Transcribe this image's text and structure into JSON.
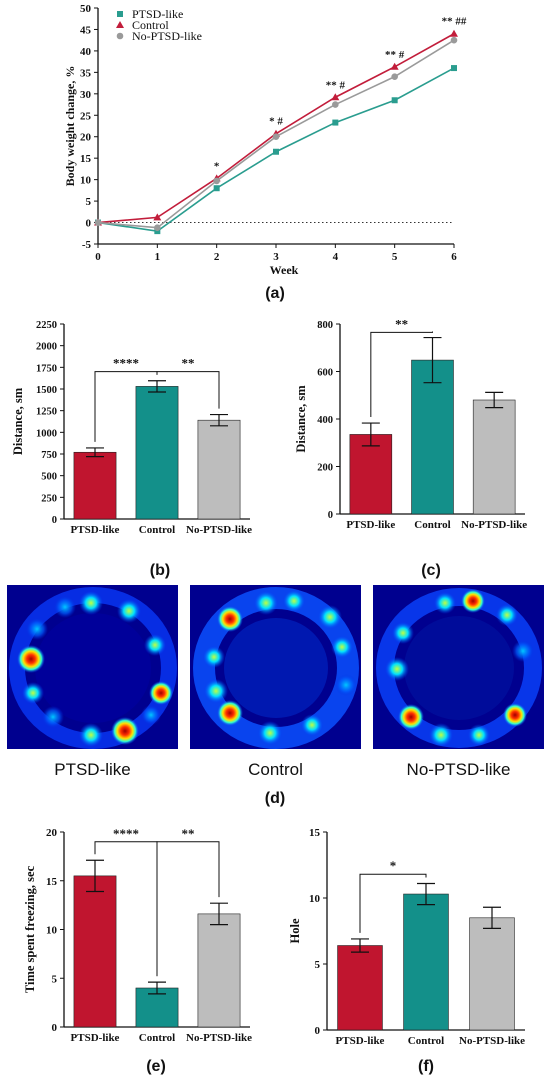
{
  "colors": {
    "ptsd": "#c0152f",
    "control": "#13908a",
    "noptsd": "#bdbdbd",
    "ptsd_line": "#2a9d8f",
    "control_line": "#c21d3b",
    "noptsd_line": "#9a9a9a"
  },
  "chart_data": [
    {
      "panel": "a",
      "type": "line",
      "xlabel": "Week",
      "ylabel": "Body weight change, %",
      "x": [
        0,
        1,
        2,
        3,
        4,
        5,
        6
      ],
      "xticks": [
        "0",
        "1",
        "2",
        "3",
        "4",
        "5",
        "6"
      ],
      "ylim": [
        -5,
        50
      ],
      "yticks": [
        "-5",
        "0",
        "5",
        "10",
        "15",
        "20",
        "25",
        "30",
        "35",
        "40",
        "45",
        "50"
      ],
      "series": [
        {
          "name": "PTSD-like",
          "marker": "square",
          "values": [
            0,
            -2,
            8,
            16.5,
            23.3,
            28.5,
            36
          ]
        },
        {
          "name": "Control",
          "marker": "triangle",
          "values": [
            0,
            1.2,
            10.3,
            20.7,
            29.2,
            36.3,
            44
          ]
        },
        {
          "name": "No-PTSD-like",
          "marker": "diamond",
          "values": [
            0,
            -1.2,
            9.7,
            20,
            27.5,
            34,
            42.5
          ]
        }
      ],
      "annotations": [
        {
          "x": 2,
          "text": "*"
        },
        {
          "x": 3,
          "text": "* #"
        },
        {
          "x": 4,
          "text": "** #"
        },
        {
          "x": 5,
          "text": "** #"
        },
        {
          "x": 6,
          "text": "** ##"
        }
      ],
      "legend": "top-left"
    },
    {
      "panel": "b",
      "type": "bar",
      "ylabel": "Distance, sm",
      "categories": [
        "PTSD-like",
        "Control",
        "No-PTSD-like"
      ],
      "values": [
        770,
        1530,
        1140
      ],
      "errors": [
        50,
        65,
        65
      ],
      "ylim": [
        0,
        2250
      ],
      "yticks": [
        "0",
        "250",
        "500",
        "750",
        "1000",
        "1250",
        "1500",
        "1750",
        "2000",
        "2250"
      ],
      "significance": [
        {
          "from": 0,
          "to": 1,
          "text": "****",
          "level": 1700
        },
        {
          "from": 1,
          "to": 2,
          "text": "**",
          "level": 1700
        }
      ]
    },
    {
      "panel": "c",
      "type": "bar",
      "ylabel": "Distance, sm",
      "categories": [
        "PTSD-like",
        "Control",
        "No-PTSD-like"
      ],
      "values": [
        335,
        648,
        480
      ],
      "errors": [
        48,
        95,
        32
      ],
      "ylim": [
        0,
        800
      ],
      "yticks": [
        "0",
        "200",
        "400",
        "600",
        "800"
      ],
      "significance": [
        {
          "from": 0,
          "to": 1,
          "text": "**",
          "level": 765
        }
      ]
    },
    {
      "panel": "e",
      "type": "bar",
      "ylabel": "Time spent freezing, sec",
      "categories": [
        "PTSD-like",
        "Control",
        "No-PTSD-like"
      ],
      "values": [
        15.5,
        4.0,
        11.6
      ],
      "errors": [
        1.6,
        0.6,
        1.1
      ],
      "ylim": [
        0,
        20
      ],
      "yticks": [
        "0",
        "5",
        "10",
        "15",
        "20"
      ],
      "significance": [
        {
          "from": 0,
          "to": 1,
          "text": "****",
          "level": 19
        },
        {
          "from": 1,
          "to": 2,
          "text": "**",
          "level": 19
        }
      ]
    },
    {
      "panel": "f",
      "type": "bar",
      "ylabel": "Hole",
      "categories": [
        "PTSD-like",
        "Control",
        "No-PTSD-like"
      ],
      "values": [
        6.4,
        10.3,
        8.5
      ],
      "errors": [
        0.5,
        0.8,
        0.8
      ],
      "ylim": [
        0,
        15
      ],
      "yticks": [
        "0",
        "5",
        "10",
        "15"
      ],
      "significance": [
        {
          "from": 0,
          "to": 1,
          "text": "*",
          "level": 11.8
        }
      ]
    }
  ],
  "heatmaps": {
    "labels": [
      "PTSD-like",
      "Control",
      "No-PTSD-like"
    ]
  },
  "panel_letters": {
    "a": "(a)",
    "b": "(b)",
    "c": "(c)",
    "d": "(d)",
    "e": "(e)",
    "f": "(f)"
  }
}
